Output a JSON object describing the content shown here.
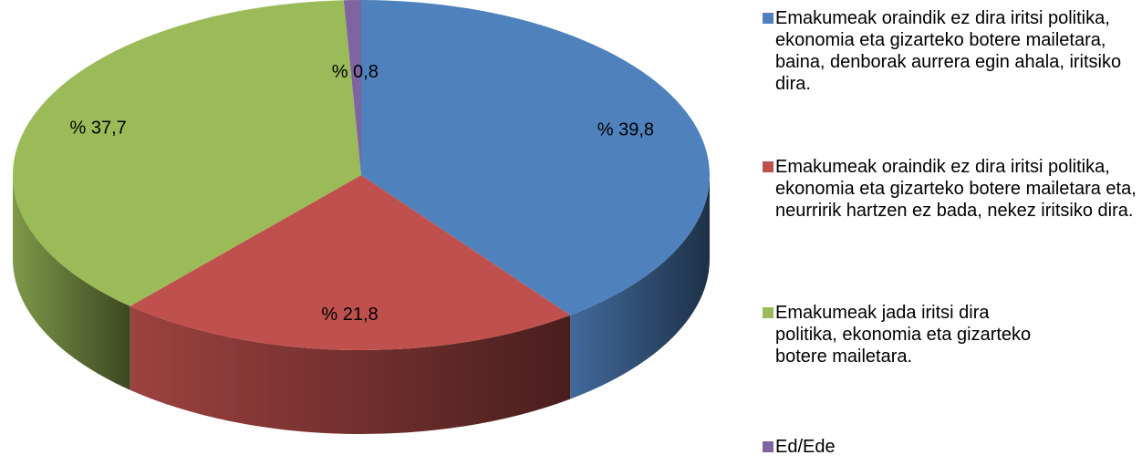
{
  "chart_data": {
    "type": "pie",
    "categories": [
      "Emakumeak oraindik ez dira iritsi politika, ekonomia eta gizarteko botere mailetara, baina, denborak aurrera egin ahala, iritsiko dira.",
      "Emakumeak oraindik ez dira iritsi politika, ekonomia eta gizarteko botere mailetara eta, neurririk hartzen ez bada, nekez iritsiko dira.",
      "Emakumeak jada iritsi dira politika, ekonomia eta gizarteko botere mailetara.",
      "Ed/Ede"
    ],
    "values": [
      39.8,
      21.8,
      37.7,
      0.8
    ],
    "value_labels": [
      "% 39,8",
      "% 21,8",
      "% 37,7",
      "% 0,8"
    ],
    "colors": [
      "#4f81bd",
      "#c0504d",
      "#9bbb59",
      "#8064a2"
    ]
  }
}
